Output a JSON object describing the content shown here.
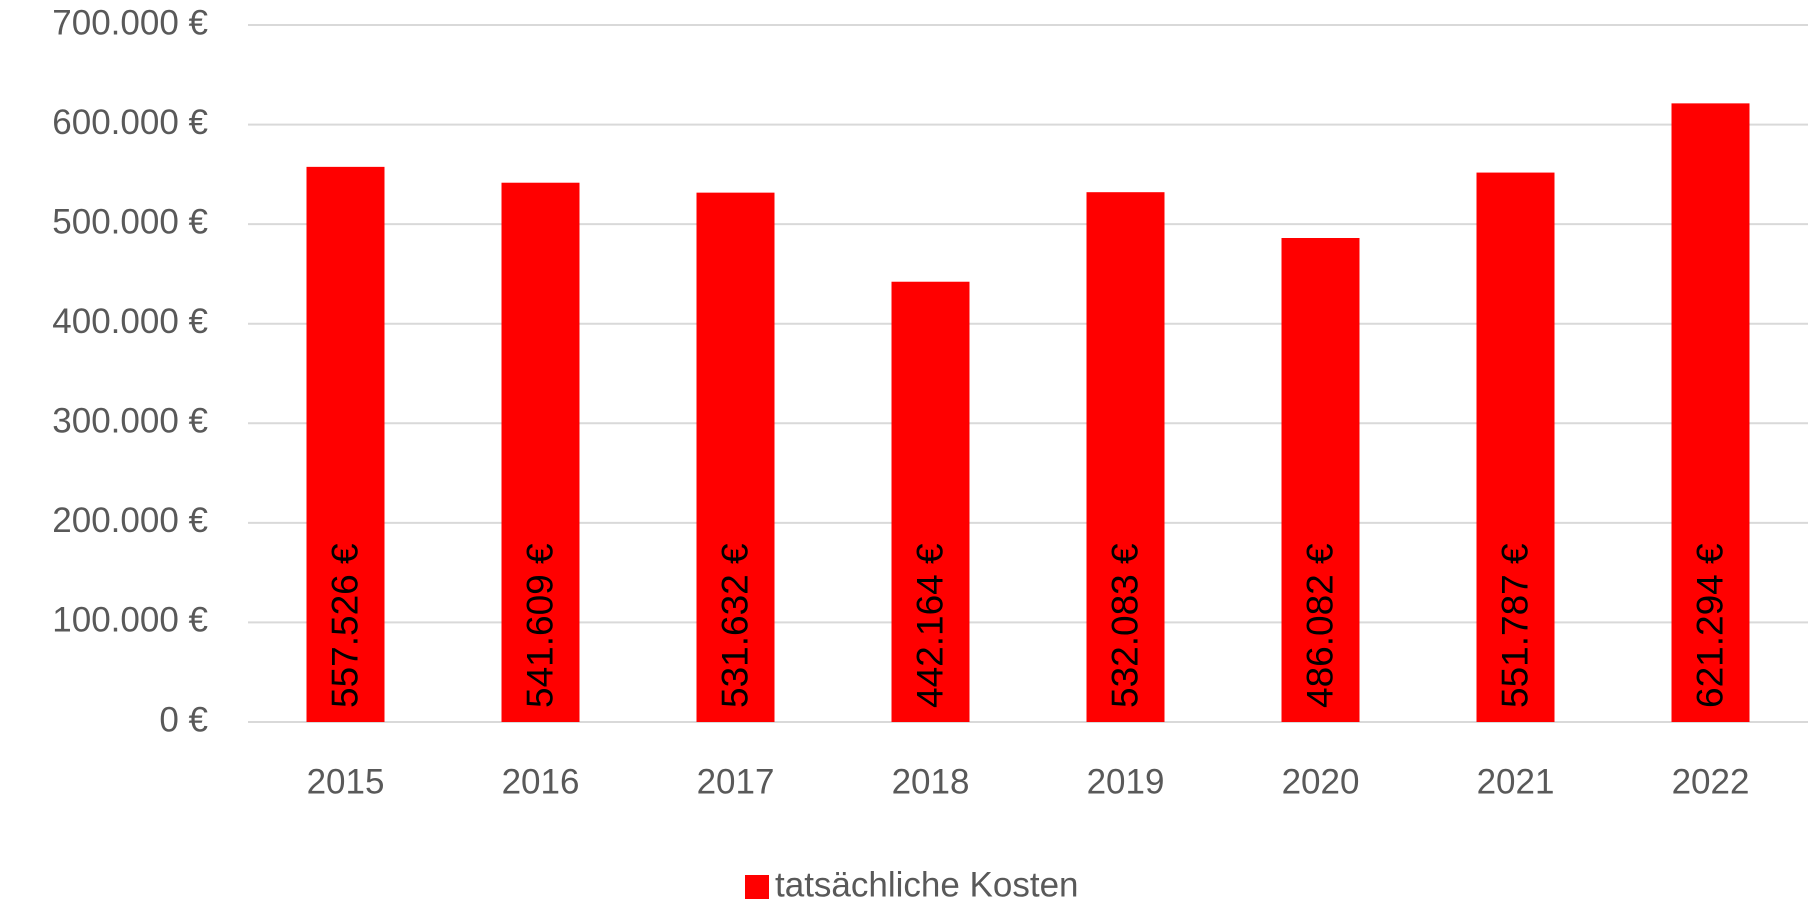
{
  "chart_data": {
    "type": "bar",
    "categories": [
      "2015",
      "2016",
      "2017",
      "2018",
      "2019",
      "2020",
      "2021",
      "2022"
    ],
    "series": [
      {
        "name": "tatsächliche Kosten",
        "color": "#ff0000",
        "values": [
          557526,
          541609,
          531632,
          442164,
          532083,
          486082,
          551787,
          621294
        ],
        "value_labels": [
          "557.526 €",
          "541.609 €",
          "531.632 €",
          "442.164 €",
          "532.083 €",
          "486.082 €",
          "551.787 €",
          "621.294 €"
        ]
      }
    ],
    "ylim": [
      0,
      700000
    ],
    "yticks": [
      {
        "value": 0,
        "label": "0 €"
      },
      {
        "value": 100000,
        "label": "100.000 €"
      },
      {
        "value": 200000,
        "label": "200.000 €"
      },
      {
        "value": 300000,
        "label": "300.000 €"
      },
      {
        "value": 400000,
        "label": "400.000 €"
      },
      {
        "value": 500000,
        "label": "500.000 €"
      },
      {
        "value": 600000,
        "label": "600.000 €"
      },
      {
        "value": 700000,
        "label": "700.000 €"
      }
    ],
    "grid": true,
    "legend": "bottom"
  }
}
